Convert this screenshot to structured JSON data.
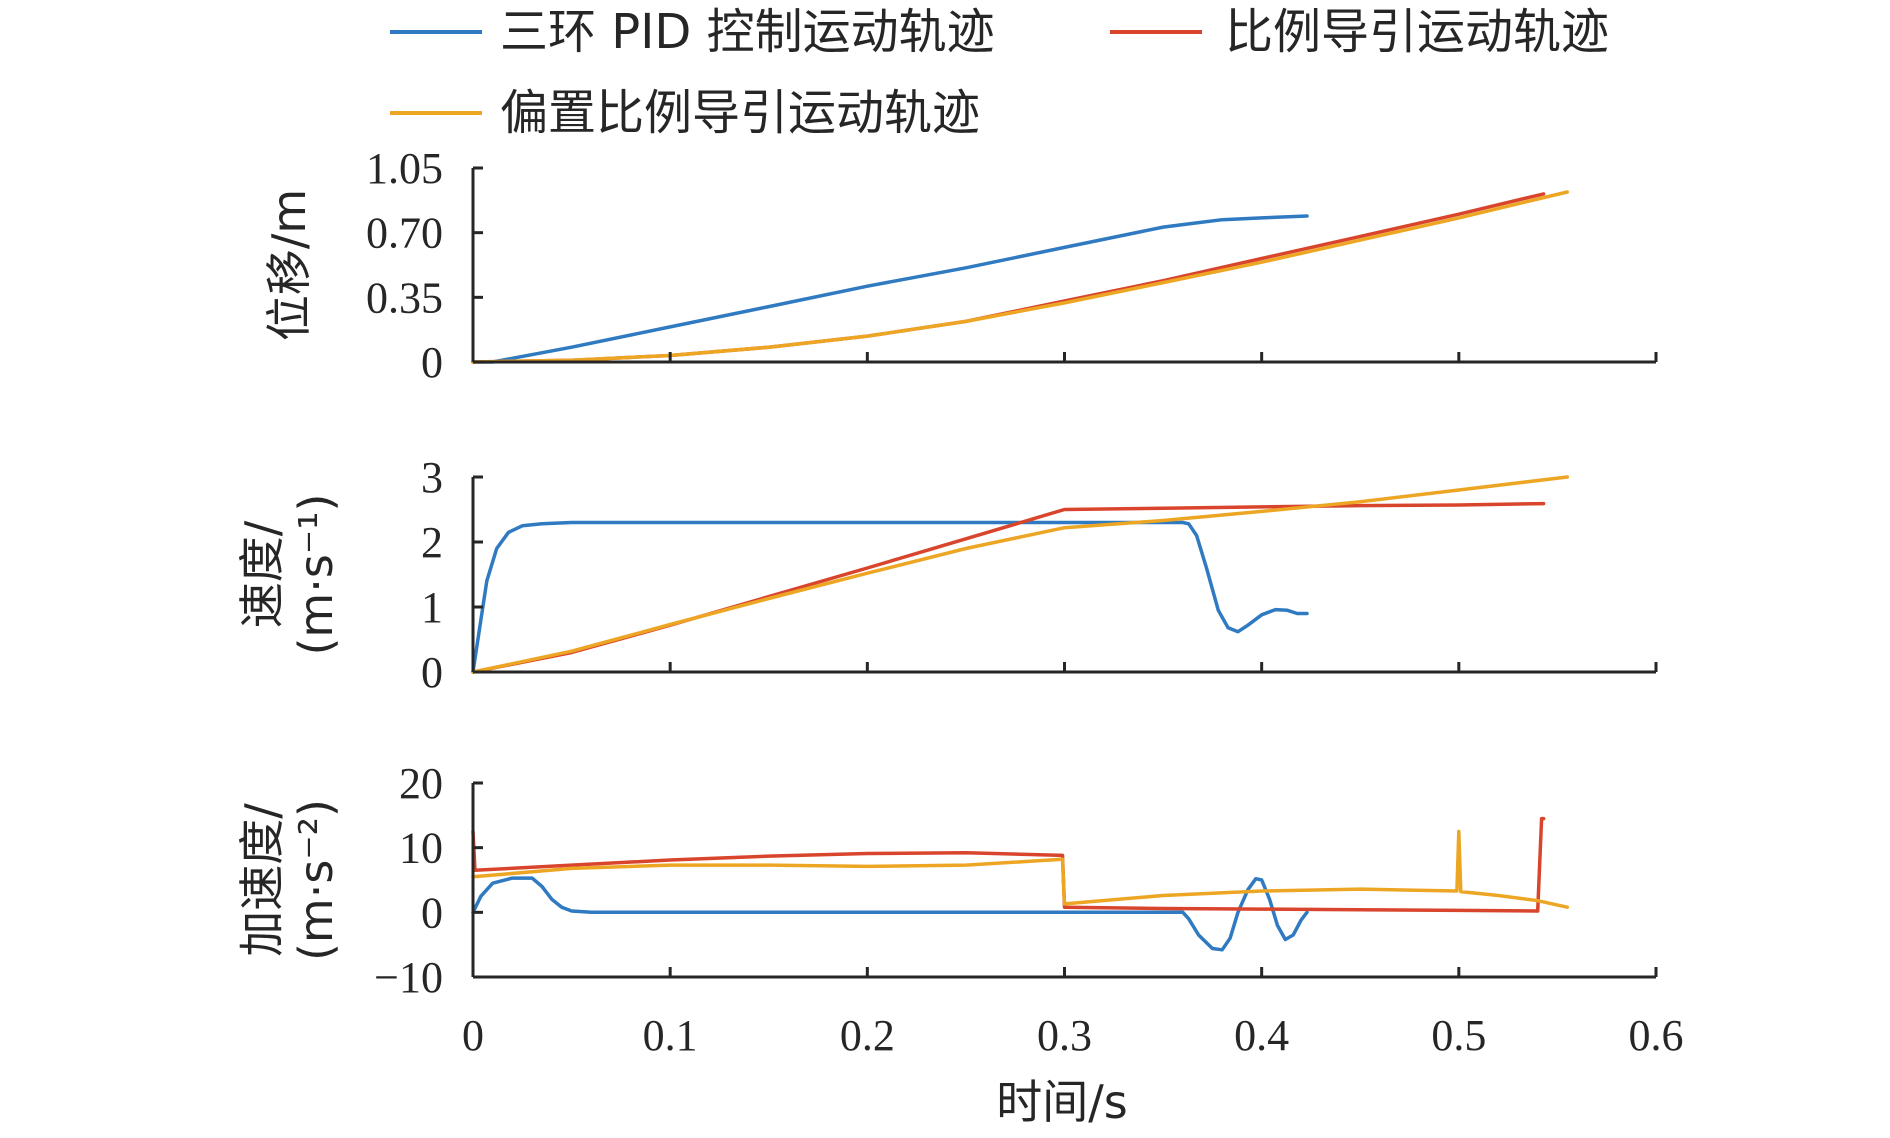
{
  "chart_data": {
    "type": "line",
    "legend": {
      "placement": "top",
      "entries": [
        {
          "label": "三环 PID 控制运动轨迹",
          "color": "#2F7AC1"
        },
        {
          "label": "比例导引运动轨迹",
          "color": "#D9452C"
        },
        {
          "label": "偏置比例导引运动轨迹",
          "color": "#EDA624"
        }
      ]
    },
    "xlabel": "时间/s",
    "xlim": [
      0,
      0.6
    ],
    "xticks": [
      0,
      0.1,
      0.2,
      0.3,
      0.4,
      0.5,
      0.6
    ],
    "xtick_labels": [
      "0",
      "0.1",
      "0.2",
      "0.3",
      "0.4",
      "0.5",
      "0.6"
    ],
    "grid": false,
    "subplots": [
      {
        "id": "displacement",
        "ylabel_lines": [
          "位移/m"
        ],
        "ylim": [
          0,
          1.05
        ],
        "yticks": [
          0,
          0.35,
          0.7,
          1.05
        ],
        "ytick_labels": [
          "0",
          "0.35",
          "0.70",
          "1.05"
        ],
        "series": [
          {
            "name": "三环 PID 控制运动轨迹",
            "color": "#2F7AC1",
            "points": [
              [
                0,
                0
              ],
              [
                0.01,
                0
              ],
              [
                0.05,
                0.08
              ],
              [
                0.1,
                0.19
              ],
              [
                0.15,
                0.3
              ],
              [
                0.2,
                0.41
              ],
              [
                0.25,
                0.51
              ],
              [
                0.3,
                0.62
              ],
              [
                0.35,
                0.73
              ],
              [
                0.365,
                0.75
              ],
              [
                0.38,
                0.77
              ],
              [
                0.4,
                0.78
              ],
              [
                0.423,
                0.79
              ]
            ]
          },
          {
            "name": "比例导引运动轨迹",
            "color": "#D9452C",
            "points": [
              [
                0,
                0
              ],
              [
                0.05,
                0.01
              ],
              [
                0.1,
                0.035
              ],
              [
                0.15,
                0.08
              ],
              [
                0.2,
                0.14
              ],
              [
                0.25,
                0.22
              ],
              [
                0.3,
                0.33
              ],
              [
                0.35,
                0.44
              ],
              [
                0.4,
                0.56
              ],
              [
                0.45,
                0.68
              ],
              [
                0.5,
                0.8
              ],
              [
                0.543,
                0.91
              ]
            ]
          },
          {
            "name": "偏置比例导引运动轨迹",
            "color": "#EDA624",
            "points": [
              [
                0,
                0
              ],
              [
                0.05,
                0.01
              ],
              [
                0.1,
                0.035
              ],
              [
                0.15,
                0.08
              ],
              [
                0.2,
                0.14
              ],
              [
                0.25,
                0.22
              ],
              [
                0.3,
                0.32
              ],
              [
                0.35,
                0.43
              ],
              [
                0.4,
                0.54
              ],
              [
                0.45,
                0.66
              ],
              [
                0.5,
                0.78
              ],
              [
                0.555,
                0.92
              ]
            ]
          }
        ]
      },
      {
        "id": "velocity",
        "ylabel_lines": [
          "速度/",
          "(m·s⁻¹)"
        ],
        "ylim": [
          0,
          3
        ],
        "yticks": [
          0,
          1,
          2,
          3
        ],
        "ytick_labels": [
          "0",
          "1",
          "2",
          "3"
        ],
        "series": [
          {
            "name": "三环 PID 控制运动轨迹",
            "color": "#2F7AC1",
            "points": [
              [
                0,
                0
              ],
              [
                0.003,
                0.6
              ],
              [
                0.007,
                1.4
              ],
              [
                0.012,
                1.9
              ],
              [
                0.018,
                2.15
              ],
              [
                0.025,
                2.25
              ],
              [
                0.035,
                2.28
              ],
              [
                0.05,
                2.3
              ],
              [
                0.1,
                2.3
              ],
              [
                0.2,
                2.3
              ],
              [
                0.3,
                2.3
              ],
              [
                0.36,
                2.3
              ],
              [
                0.363,
                2.28
              ],
              [
                0.367,
                2.1
              ],
              [
                0.372,
                1.6
              ],
              [
                0.378,
                0.95
              ],
              [
                0.383,
                0.68
              ],
              [
                0.388,
                0.62
              ],
              [
                0.393,
                0.72
              ],
              [
                0.4,
                0.88
              ],
              [
                0.407,
                0.96
              ],
              [
                0.413,
                0.95
              ],
              [
                0.418,
                0.9
              ],
              [
                0.423,
                0.9
              ]
            ]
          },
          {
            "name": "比例导引运动轨迹",
            "color": "#D9452C",
            "points": [
              [
                0,
                0
              ],
              [
                0.05,
                0.3
              ],
              [
                0.1,
                0.72
              ],
              [
                0.15,
                1.16
              ],
              [
                0.2,
                1.6
              ],
              [
                0.25,
                2.05
              ],
              [
                0.3,
                2.5
              ],
              [
                0.35,
                2.52
              ],
              [
                0.4,
                2.54
              ],
              [
                0.45,
                2.56
              ],
              [
                0.5,
                2.57
              ],
              [
                0.543,
                2.59
              ]
            ]
          },
          {
            "name": "偏置比例导引运动轨迹",
            "color": "#EDA624",
            "points": [
              [
                0,
                0
              ],
              [
                0.05,
                0.32
              ],
              [
                0.1,
                0.73
              ],
              [
                0.15,
                1.13
              ],
              [
                0.2,
                1.52
              ],
              [
                0.25,
                1.9
              ],
              [
                0.3,
                2.22
              ],
              [
                0.35,
                2.33
              ],
              [
                0.4,
                2.47
              ],
              [
                0.45,
                2.62
              ],
              [
                0.5,
                2.8
              ],
              [
                0.555,
                3.0
              ]
            ]
          }
        ]
      },
      {
        "id": "acceleration",
        "ylabel_lines": [
          "加速度/",
          "(m·s⁻²)"
        ],
        "ylim": [
          -10,
          20
        ],
        "yticks": [
          -10,
          0,
          10,
          20
        ],
        "ytick_labels": [
          "−10",
          "0",
          "10",
          "20"
        ],
        "series": [
          {
            "name": "三环 PID 控制运动轨迹",
            "color": "#2F7AC1",
            "points": [
              [
                0,
                0
              ],
              [
                0.004,
                2.5
              ],
              [
                0.01,
                4.5
              ],
              [
                0.02,
                5.3
              ],
              [
                0.03,
                5.3
              ],
              [
                0.035,
                4
              ],
              [
                0.04,
                2
              ],
              [
                0.045,
                0.8
              ],
              [
                0.05,
                0.2
              ],
              [
                0.06,
                0
              ],
              [
                0.1,
                0
              ],
              [
                0.2,
                0
              ],
              [
                0.3,
                0
              ],
              [
                0.36,
                0
              ],
              [
                0.363,
                -1
              ],
              [
                0.368,
                -3.5
              ],
              [
                0.375,
                -5.6
              ],
              [
                0.38,
                -5.8
              ],
              [
                0.384,
                -4
              ],
              [
                0.388,
                0
              ],
              [
                0.393,
                3.5
              ],
              [
                0.397,
                5.2
              ],
              [
                0.4,
                5
              ],
              [
                0.404,
                2
              ],
              [
                0.408,
                -2
              ],
              [
                0.412,
                -4.2
              ],
              [
                0.416,
                -3.5
              ],
              [
                0.42,
                -1.2
              ],
              [
                0.423,
                0
              ]
            ]
          },
          {
            "name": "比例导引运动轨迹",
            "color": "#D9452C",
            "points": [
              [
                0,
                12.5
              ],
              [
                0.001,
                6.5
              ],
              [
                0.05,
                7.3
              ],
              [
                0.1,
                8.1
              ],
              [
                0.15,
                8.7
              ],
              [
                0.2,
                9.1
              ],
              [
                0.25,
                9.2
              ],
              [
                0.299,
                8.8
              ],
              [
                0.3,
                0.8
              ],
              [
                0.35,
                0.6
              ],
              [
                0.4,
                0.5
              ],
              [
                0.45,
                0.4
              ],
              [
                0.5,
                0.3
              ],
              [
                0.54,
                0.2
              ],
              [
                0.542,
                14.5
              ],
              [
                0.543,
                14.5
              ]
            ]
          },
          {
            "name": "偏置比例导引运动轨迹",
            "color": "#EDA624",
            "points": [
              [
                0,
                5.5
              ],
              [
                0.05,
                6.8
              ],
              [
                0.1,
                7.3
              ],
              [
                0.15,
                7.3
              ],
              [
                0.2,
                7.1
              ],
              [
                0.25,
                7.3
              ],
              [
                0.299,
                8.2
              ],
              [
                0.3,
                1.3
              ],
              [
                0.35,
                2.6
              ],
              [
                0.4,
                3.3
              ],
              [
                0.45,
                3.6
              ],
              [
                0.499,
                3.3
              ],
              [
                0.5,
                12.5
              ],
              [
                0.501,
                3.2
              ],
              [
                0.52,
                2.6
              ],
              [
                0.54,
                1.8
              ],
              [
                0.555,
                0.8
              ]
            ]
          }
        ]
      }
    ]
  }
}
